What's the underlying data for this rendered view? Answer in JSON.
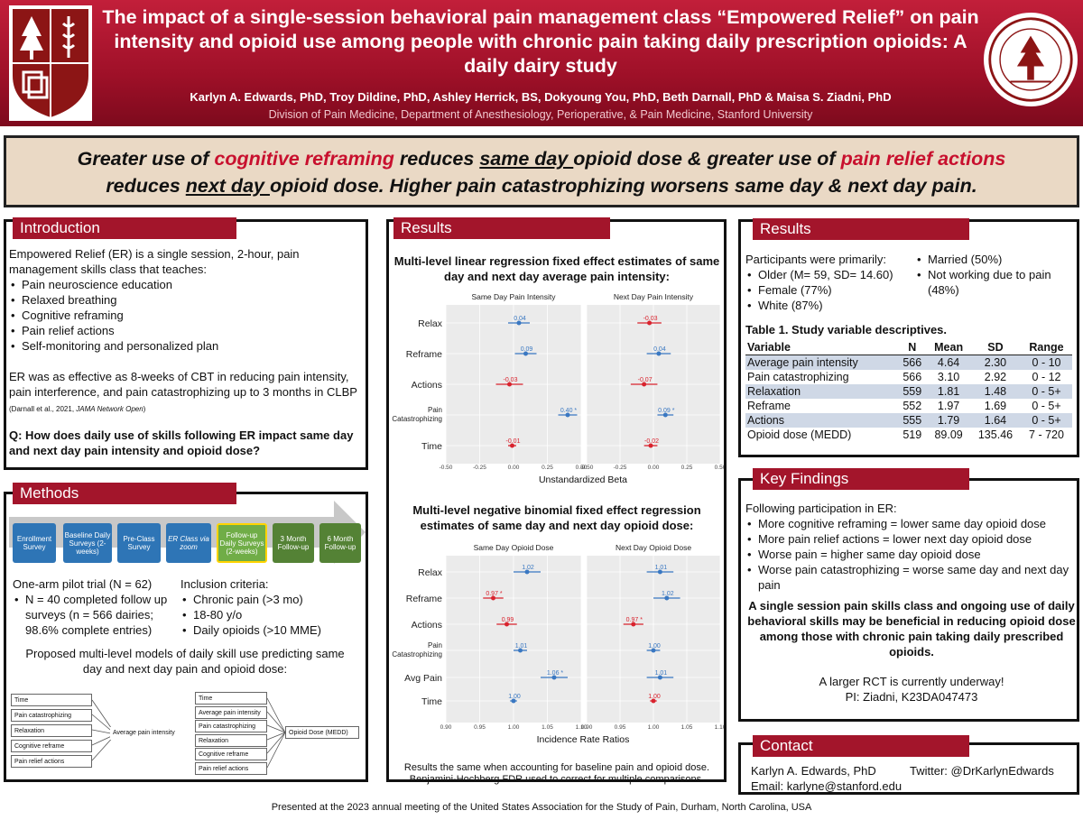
{
  "header": {
    "title": "The impact of a single-session behavioral pain management class “Empowered Relief” on pain intensity and opioid use among people with chronic pain taking daily prescription opioids: A daily dairy study",
    "authors": "Karlyn A. Edwards, PhD, Troy Dildine, PhD, Ashley Herrick, BS, Dokyoung You, PhD, Beth Darnall, PhD & Maisa S. Ziadni, PhD",
    "affiliation": "Division of Pain Medicine, Department of Anesthesiology, Perioperative, & Pain Medicine, Stanford University"
  },
  "banner": {
    "p1": "Greater use of ",
    "r1": "cognitive reframing",
    "p2": " reduces ",
    "u1": "same day ",
    "p3": "opioid dose & greater use of ",
    "r2": "pain relief actions",
    "p4": " reduces ",
    "u2": "next day ",
    "p5": "opioid dose. Higher pain catastrophizing worsens same day & next day pain."
  },
  "intro": {
    "title": "Introduction",
    "lead": "Empowered Relief (ER) is a single session, 2-hour, pain management skills class that teaches:",
    "bullets": [
      "Pain neuroscience education",
      "Relaxed breathing",
      "Cognitive reframing",
      "Pain relief actions",
      "Self-monitoring and personalized plan"
    ],
    "para": "ER was as effective as 8-weeks of CBT in reducing pain intensity, pain interference, and pain catastrophizing up to 3 months in CLBP",
    "cite1": "(Darnall et al., 2021, ",
    "cite2": "JAMA Network Open",
    "cite3": ")",
    "question": "Q: How does daily use of skills following ER impact same day and next day pain intensity and opioid dose?"
  },
  "methods": {
    "title": "Methods",
    "flow": [
      {
        "label": "Enrollment Survey",
        "color": "#2e75b6"
      },
      {
        "label": "Baseline Daily Surveys (2-weeks)",
        "color": "#2e75b6"
      },
      {
        "label": "Pre-Class Survey",
        "color": "#2e75b6"
      },
      {
        "label": "ER Class via zoom",
        "color": "#2e75b6"
      },
      {
        "label": "Follow-up Daily Surveys (2-weeks)",
        "color": "#70ad47"
      },
      {
        "label": "3 Month Follow-up",
        "color": "#548235"
      },
      {
        "label": "6 Month Follow-up",
        "color": "#548235"
      }
    ],
    "trial": "One-arm pilot trial (N = 62)",
    "trial_bullets": [
      "N = 40 completed follow up surveys (n = 566 dairies; 98.6% complete entries)"
    ],
    "incl": "Inclusion criteria:",
    "incl_bullets": [
      "Chronic pain (>3 mo)",
      "18-80 y/o",
      "Daily opioids (>10 MME)"
    ],
    "models_title": "Proposed multi-level models of daily skill use predicting same day and next day pain and opioid dose:",
    "model1_inputs": [
      "Time",
      "Pain catastrophizing",
      "Relaxation",
      "Cognitive reframe",
      "Pain relief actions"
    ],
    "model1_out": "Average pain intensity",
    "model2_inputs": [
      "Time",
      "Average pain intensity",
      "Pain catastrophizing",
      "Relaxation",
      "Cognitive reframe",
      "Pain relief actions"
    ],
    "model2_out": "Opioid Dose (MEDD)"
  },
  "results_mid": {
    "title": "Results",
    "chart1_title": "Multi-level linear regression fixed effect estimates of same day and next day average pain intensity:",
    "chart2_title": "Multi-level negative binomial fixed effect regression estimates of same day and next day opioid dose:",
    "footnote": "Results the same when accounting for baseline pain and opioid dose. Benjamini-Hochberg FDR used to correct for multiple comparisons."
  },
  "results_right": {
    "title": "Results",
    "part_lead": "Participants were primarily:",
    "part_left": [
      "Older (M= 59, SD= 14.60)",
      "Female (77%)",
      "White (87%)"
    ],
    "part_right": [
      "Married (50%)",
      "Not working due to pain (48%)"
    ],
    "table_title": "Table 1. Study variable descriptives.",
    "table_headers": [
      "Variable",
      "N",
      "Mean",
      "SD",
      "Range"
    ],
    "table_rows": [
      [
        "Average pain intensity",
        "566",
        "4.64",
        "2.30",
        "0 - 10"
      ],
      [
        "Pain catastrophizing",
        "566",
        "3.10",
        "2.92",
        "0 - 12"
      ],
      [
        "Relaxation",
        "559",
        "1.81",
        "1.48",
        "0 - 5+"
      ],
      [
        "Reframe",
        "552",
        "1.97",
        "1.69",
        "0 - 5+"
      ],
      [
        "Actions",
        "555",
        "1.79",
        "1.64",
        "0 - 5+"
      ],
      [
        "Opioid dose (MEDD)",
        "519",
        "89.09",
        "135.46",
        "7 - 720"
      ]
    ]
  },
  "key": {
    "title": "Key Findings",
    "lead": "Following participation in ER:",
    "bullets": [
      "More cognitive reframing = lower same day opioid dose",
      "More pain relief actions = lower next day opioid dose",
      "Worse pain = higher same day opioid dose",
      "Worse pain catastrophizing = worse same day and next day pain"
    ],
    "bold": "A single session pain skills class and ongoing use of daily behavioral skills may be beneficial in reducing opioid dose among those with chronic pain taking daily prescribed opioids.",
    "rct": "A larger RCT is currently underway!",
    "pi": "PI: Ziadni, K23DA047473"
  },
  "contact": {
    "title": "Contact",
    "name": "Karlyn A. Edwards, PhD",
    "twitter": "Twitter: @DrKarlynEdwards",
    "email": "Email: karlyne@stanford.edu"
  },
  "footer": "Presented at the 2023 annual meeting of the United States Association for the Study of Pain, Durham, North Carolina, USA",
  "chart_data": [
    {
      "type": "scatter",
      "subtype": "forest",
      "xlabel": "Unstandardized Beta",
      "xlim": [
        -0.5,
        0.5
      ],
      "ticks": [
        -0.5,
        -0.25,
        0.0,
        0.25,
        0.5
      ],
      "tick_labels": [
        "-0.50",
        "-0.25",
        "0.00",
        "0.25",
        "0.50"
      ],
      "categories": [
        "Relax",
        "Reframe",
        "Actions",
        "Pain Catastrophizing",
        "Time"
      ],
      "series": [
        {
          "name": "Same Day Pain Intensity",
          "values": [
            0.04,
            0.09,
            -0.03,
            0.4,
            -0.01
          ],
          "labels": [
            "0.04",
            "0.09",
            "-0.03",
            "0.40 *",
            "-0.01"
          ],
          "ci": [
            [
              -0.04,
              0.12
            ],
            [
              0.01,
              0.17
            ],
            [
              -0.13,
              0.07
            ],
            [
              0.33,
              0.47
            ],
            [
              -0.04,
              0.02
            ]
          ],
          "colors": [
            "#3a78c2",
            "#3a78c2",
            "#d9232e",
            "#3a78c2",
            "#d9232e"
          ]
        },
        {
          "name": "Next Day Pain Intensity",
          "values": [
            -0.03,
            0.04,
            -0.07,
            0.09,
            -0.02
          ],
          "labels": [
            "-0.03",
            "0.04",
            "-0.07",
            "0.09 *",
            "-0.02"
          ],
          "ci": [
            [
              -0.12,
              0.06
            ],
            [
              -0.05,
              0.13
            ],
            [
              -0.17,
              0.03
            ],
            [
              0.03,
              0.15
            ],
            [
              -0.07,
              0.03
            ]
          ],
          "colors": [
            "#d9232e",
            "#3a78c2",
            "#d9232e",
            "#3a78c2",
            "#d9232e"
          ]
        }
      ]
    },
    {
      "type": "scatter",
      "subtype": "forest",
      "xlabel": "Incidence Rate Ratios",
      "xlim": [
        0.9,
        1.1
      ],
      "ticks": [
        0.9,
        0.95,
        1.0,
        1.05,
        1.1
      ],
      "tick_labels": [
        "0.90",
        "0.95",
        "1.00",
        "1.05",
        "1.10"
      ],
      "categories": [
        "Relax",
        "Reframe",
        "Actions",
        "Pain Catastrophizing",
        "Avg Pain",
        "Time"
      ],
      "series": [
        {
          "name": "Same Day Opioid Dose",
          "values": [
            1.02,
            0.97,
            0.99,
            1.01,
            1.06,
            1.0
          ],
          "labels": [
            "1.02",
            "0.97 *",
            "0.99",
            "1.01",
            "1.06 *",
            "1.00"
          ],
          "ci": [
            [
              1.0,
              1.04
            ],
            [
              0.955,
              0.985
            ],
            [
              0.975,
              1.005
            ],
            [
              1.0,
              1.02
            ],
            [
              1.04,
              1.08
            ],
            [
              0.995,
              1.005
            ]
          ],
          "colors": [
            "#3a78c2",
            "#d9232e",
            "#d9232e",
            "#3a78c2",
            "#3a78c2",
            "#3a78c2"
          ]
        },
        {
          "name": "Next Day Opioid Dose",
          "values": [
            1.01,
            1.02,
            0.97,
            1.0,
            1.01,
            1.0
          ],
          "labels": [
            "1.01",
            "1.02",
            "0.97 *",
            "1.00",
            "1.01",
            "1.00"
          ],
          "ci": [
            [
              0.99,
              1.03
            ],
            [
              1.0,
              1.04
            ],
            [
              0.955,
              0.985
            ],
            [
              0.99,
              1.01
            ],
            [
              0.99,
              1.03
            ],
            [
              0.995,
              1.005
            ]
          ],
          "colors": [
            "#3a78c2",
            "#3a78c2",
            "#d9232e",
            "#3a78c2",
            "#3a78c2",
            "#d9232e"
          ]
        }
      ]
    }
  ]
}
